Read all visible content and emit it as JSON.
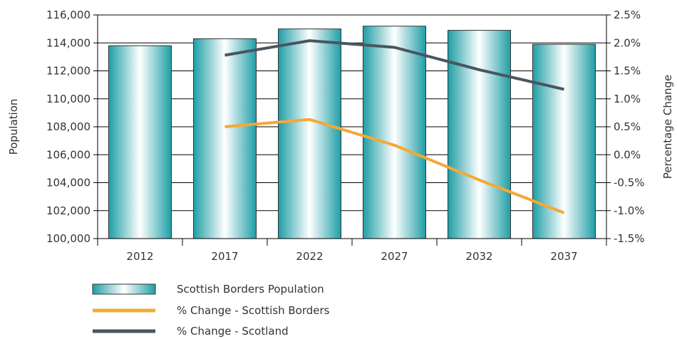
{
  "chart_data": {
    "type": "bar",
    "categories": [
      "2012",
      "2017",
      "2022",
      "2027",
      "2032",
      "2037"
    ],
    "series": [
      {
        "name": "Scottish Borders Population",
        "type": "bar",
        "axis": "left",
        "values": [
          113800,
          114300,
          115000,
          115200,
          114900,
          113900
        ]
      },
      {
        "name": "% Change - Scottish Borders",
        "type": "line",
        "axis": "right",
        "color": "#f5a835",
        "values": [
          null,
          0.5,
          0.63,
          0.17,
          -0.45,
          -1.04
        ]
      },
      {
        "name": "% Change - Scotland",
        "type": "line",
        "axis": "right",
        "color": "#4a5560",
        "values": [
          null,
          1.78,
          2.04,
          1.92,
          1.52,
          1.17
        ]
      }
    ],
    "ylabel": "Population",
    "y2label": "Percentage Change",
    "ylim": [
      100000,
      116000
    ],
    "y2lim": [
      -1.5,
      2.5
    ],
    "yticks": [
      "100,000",
      "102,000",
      "104,000",
      "106,000",
      "108,000",
      "110,000",
      "112,000",
      "114,000",
      "116,000"
    ],
    "y2ticks": [
      "-1.5%",
      "-1.0%",
      "-0.5%",
      "0.0%",
      "0.5%",
      "1.0%",
      "1.5%",
      "2.0%",
      "2.5%"
    ],
    "grid": true,
    "legend_position": "bottom-left",
    "colors": {
      "bar_edge": "#1e9ea6",
      "bar_light": "#ffffff",
      "grid": "#000000",
      "text": "#333333"
    }
  }
}
